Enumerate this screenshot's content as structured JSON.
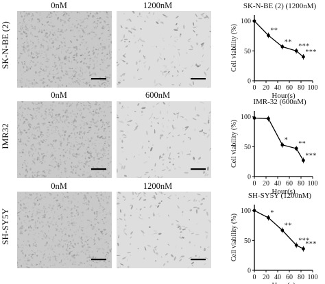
{
  "rows": [
    {
      "label": "SK-N-BE (2)",
      "control_label": "0nM",
      "treated_label": "1200nM"
    },
    {
      "label": "IMR32",
      "control_label": "0nM",
      "treated_label": "600nM"
    },
    {
      "label": "SH-SY5Y",
      "control_label": "0nM",
      "treated_label": "1200nM"
    }
  ],
  "chart_data": [
    {
      "type": "line",
      "title": "SK-N-BE (2) (1200nM)",
      "xlabel": "Hour(s)",
      "ylabel": "Cell viability (%)",
      "xticks": [
        0,
        20,
        40,
        60,
        80,
        100
      ],
      "yticks": [
        0,
        50,
        100
      ],
      "xlim": [
        0,
        100
      ],
      "ylim": [
        0,
        110
      ],
      "x": [
        0,
        24,
        48,
        72,
        84
      ],
      "y": [
        100,
        76,
        57,
        50,
        40
      ],
      "annotations": [
        "",
        "**",
        "**",
        "***",
        "***"
      ]
    },
    {
      "type": "line",
      "title": "IMR-32 (600nM)",
      "xlabel": "Hour(s)",
      "ylabel": "Cell viability (%)",
      "xticks": [
        0,
        20,
        40,
        60,
        80,
        100
      ],
      "yticks": [
        0,
        50,
        100
      ],
      "xlim": [
        0,
        100
      ],
      "ylim": [
        0,
        110
      ],
      "x": [
        0,
        24,
        48,
        72,
        84
      ],
      "y": [
        98,
        97,
        53,
        47,
        27
      ],
      "annotations": [
        "",
        "",
        "*",
        "**",
        "***"
      ]
    },
    {
      "type": "line",
      "title": "SH-SY5Y (1200nM)",
      "xlabel": "Hour(s)",
      "ylabel": "Cell viability (%)",
      "xticks": [
        0,
        20,
        40,
        60,
        80,
        100
      ],
      "yticks": [
        0,
        50,
        100
      ],
      "xlim": [
        0,
        100
      ],
      "ylim": [
        0,
        110
      ],
      "x": [
        0,
        24,
        48,
        72,
        84
      ],
      "y": [
        100,
        88,
        67,
        42,
        36
      ],
      "annotations": [
        "",
        "*",
        "**",
        "***",
        "***"
      ]
    }
  ]
}
